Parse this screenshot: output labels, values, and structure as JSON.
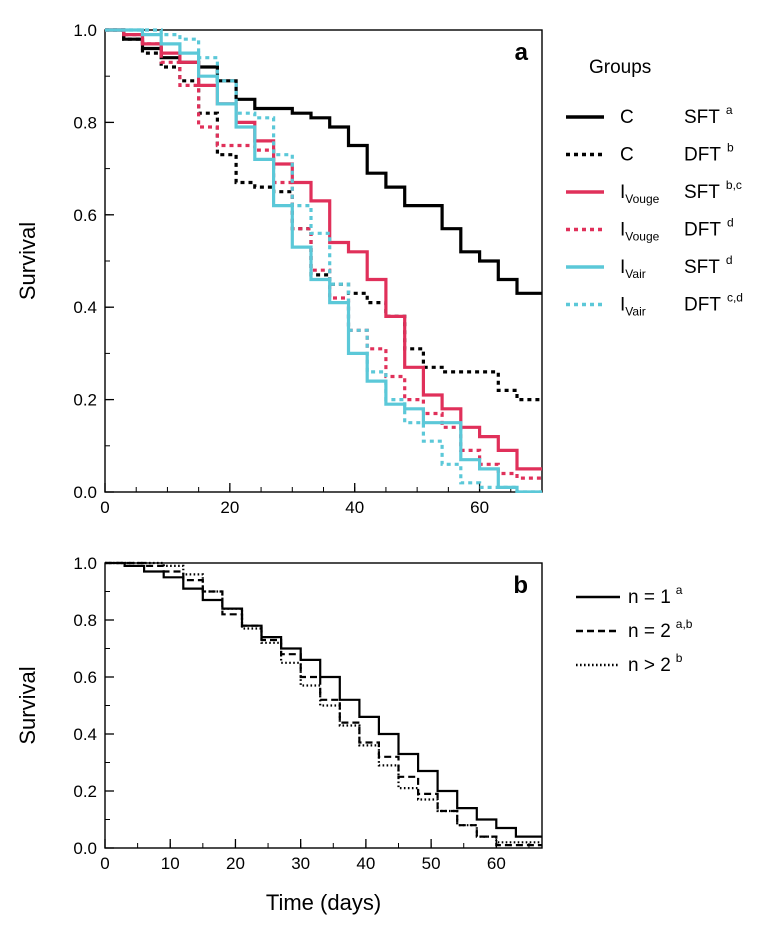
{
  "chart_data": [
    {
      "type": "line",
      "step": true,
      "panel_label": "a",
      "xlabel": "",
      "ylabel": "Survival",
      "xlim": [
        0,
        70
      ],
      "ylim": [
        0,
        1.0
      ],
      "xticks": [
        "0",
        "20",
        "40",
        "60"
      ],
      "yticks": [
        "0.0",
        "0.2",
        "0.4",
        "0.6",
        "0.8",
        "1.0"
      ],
      "legend_title": "Groups",
      "legend_placement": "right",
      "series": [
        {
          "name": "C",
          "sub": "",
          "treatment": "SFT",
          "sup": "a",
          "color": "#000000",
          "dash": "solid",
          "width": 3.2,
          "x": [
            0,
            3,
            6,
            9,
            12,
            15,
            18,
            21,
            24,
            27,
            30,
            33,
            36,
            39,
            42,
            45,
            48,
            51,
            54,
            57,
            60,
            63,
            66,
            70
          ],
          "y": [
            1.0,
            0.98,
            0.96,
            0.94,
            0.93,
            0.92,
            0.89,
            0.85,
            0.83,
            0.83,
            0.82,
            0.81,
            0.79,
            0.75,
            0.69,
            0.66,
            0.62,
            0.62,
            0.57,
            0.52,
            0.5,
            0.46,
            0.43,
            0.43
          ]
        },
        {
          "name": "C",
          "sub": "",
          "treatment": "DFT",
          "sup": "b",
          "color": "#000000",
          "dash": "4,4",
          "width": 3.2,
          "x": [
            0,
            3,
            6,
            9,
            12,
            15,
            18,
            21,
            24,
            27,
            30,
            33,
            36,
            39,
            42,
            45,
            48,
            51,
            54,
            57,
            60,
            63,
            66,
            70
          ],
          "y": [
            1.0,
            0.98,
            0.95,
            0.92,
            0.89,
            0.82,
            0.73,
            0.67,
            0.66,
            0.65,
            0.57,
            0.47,
            0.45,
            0.43,
            0.41,
            0.38,
            0.31,
            0.27,
            0.26,
            0.26,
            0.26,
            0.22,
            0.2,
            0.2
          ]
        },
        {
          "name": "I",
          "sub": "Vouge",
          "treatment": "SFT",
          "sup": "b,c",
          "color": "#e0305a",
          "dash": "solid",
          "width": 3.2,
          "x": [
            0,
            3,
            6,
            9,
            12,
            15,
            18,
            21,
            24,
            27,
            30,
            33,
            36,
            39,
            42,
            45,
            48,
            51,
            54,
            57,
            60,
            63,
            66,
            70
          ],
          "y": [
            1.0,
            0.99,
            0.97,
            0.95,
            0.93,
            0.88,
            0.84,
            0.8,
            0.76,
            0.71,
            0.67,
            0.63,
            0.54,
            0.52,
            0.46,
            0.38,
            0.27,
            0.21,
            0.18,
            0.14,
            0.12,
            0.09,
            0.05,
            0.05
          ]
        },
        {
          "name": "I",
          "sub": "Vouge",
          "treatment": "DFT",
          "sup": "d",
          "color": "#e0305a",
          "dash": "4,4",
          "width": 3.2,
          "x": [
            0,
            3,
            6,
            9,
            12,
            15,
            18,
            21,
            24,
            27,
            30,
            33,
            36,
            39,
            42,
            45,
            48,
            51,
            54,
            57,
            60,
            63,
            66,
            70
          ],
          "y": [
            1.0,
            0.99,
            0.97,
            0.93,
            0.88,
            0.79,
            0.75,
            0.75,
            0.74,
            0.67,
            0.57,
            0.48,
            0.42,
            0.35,
            0.31,
            0.25,
            0.2,
            0.17,
            0.14,
            0.09,
            0.06,
            0.04,
            0.03,
            0.03
          ]
        },
        {
          "name": "I",
          "sub": "Vair",
          "treatment": "SFT",
          "sup": "d",
          "color": "#5bc8d8",
          "dash": "solid",
          "width": 3.2,
          "x": [
            0,
            3,
            6,
            9,
            12,
            15,
            18,
            21,
            24,
            27,
            30,
            33,
            36,
            39,
            42,
            45,
            48,
            51,
            54,
            57,
            60,
            63,
            66,
            70
          ],
          "y": [
            1.0,
            1.0,
            0.99,
            0.97,
            0.95,
            0.9,
            0.84,
            0.79,
            0.72,
            0.62,
            0.53,
            0.46,
            0.41,
            0.3,
            0.24,
            0.19,
            0.18,
            0.15,
            0.15,
            0.07,
            0.05,
            0.01,
            0.0,
            0.0
          ]
        },
        {
          "name": "I",
          "sub": "Vair",
          "treatment": "DFT",
          "sup": "c,d",
          "color": "#5bc8d8",
          "dash": "4,4",
          "width": 3.2,
          "x": [
            0,
            3,
            6,
            9,
            12,
            15,
            18,
            21,
            24,
            27,
            30,
            33,
            36,
            39,
            42,
            45,
            48,
            51,
            54,
            57,
            60,
            63,
            66,
            70
          ],
          "y": [
            1.0,
            1.0,
            1.0,
            0.99,
            0.98,
            0.94,
            0.89,
            0.82,
            0.81,
            0.73,
            0.62,
            0.56,
            0.45,
            0.35,
            0.26,
            0.2,
            0.15,
            0.11,
            0.06,
            0.02,
            0.01,
            0.01,
            0.0,
            0.0
          ]
        }
      ]
    },
    {
      "type": "line",
      "step": true,
      "panel_label": "b",
      "xlabel": "Time (days)",
      "ylabel": "Survival",
      "xlim": [
        0,
        67
      ],
      "ylim": [
        0,
        1.0
      ],
      "xticks": [
        "0",
        "10",
        "20",
        "30",
        "40",
        "50",
        "60"
      ],
      "yticks": [
        "0.0",
        "0.2",
        "0.4",
        "0.6",
        "0.8",
        "1.0"
      ],
      "legend_title": "",
      "legend_placement": "right",
      "series": [
        {
          "name": "n = 1",
          "sup": "a",
          "color": "#000000",
          "dash": "solid",
          "width": 2.2,
          "x": [
            0,
            3,
            6,
            9,
            12,
            15,
            18,
            21,
            24,
            27,
            30,
            33,
            36,
            39,
            42,
            45,
            48,
            51,
            54,
            57,
            60,
            63,
            67
          ],
          "y": [
            1.0,
            0.99,
            0.97,
            0.95,
            0.91,
            0.87,
            0.84,
            0.78,
            0.74,
            0.7,
            0.66,
            0.6,
            0.52,
            0.46,
            0.4,
            0.33,
            0.27,
            0.2,
            0.14,
            0.1,
            0.07,
            0.04,
            0.04
          ]
        },
        {
          "name": "n = 2",
          "sup": "a,b",
          "color": "#000000",
          "dash": "7,4",
          "width": 2.2,
          "x": [
            0,
            3,
            6,
            9,
            12,
            15,
            18,
            21,
            24,
            27,
            30,
            33,
            36,
            39,
            42,
            45,
            48,
            51,
            54,
            57,
            60,
            63,
            67
          ],
          "y": [
            1.0,
            1.0,
            0.99,
            0.97,
            0.94,
            0.9,
            0.82,
            0.78,
            0.73,
            0.68,
            0.6,
            0.52,
            0.44,
            0.37,
            0.32,
            0.25,
            0.19,
            0.13,
            0.08,
            0.04,
            0.01,
            0.01,
            0.01
          ]
        },
        {
          "name": "n > 2",
          "sup": "b",
          "color": "#000000",
          "dash": "1.6,2.4",
          "width": 2.2,
          "x": [
            0,
            3,
            6,
            9,
            12,
            15,
            18,
            21,
            24,
            27,
            30,
            33,
            36,
            39,
            42,
            45,
            48,
            51,
            54,
            57,
            60,
            63,
            67
          ],
          "y": [
            1.0,
            1.0,
            1.0,
            0.99,
            0.96,
            0.9,
            0.84,
            0.77,
            0.72,
            0.65,
            0.57,
            0.5,
            0.43,
            0.36,
            0.29,
            0.21,
            0.17,
            0.13,
            0.08,
            0.04,
            0.02,
            0.02,
            0.02
          ]
        }
      ]
    }
  ]
}
